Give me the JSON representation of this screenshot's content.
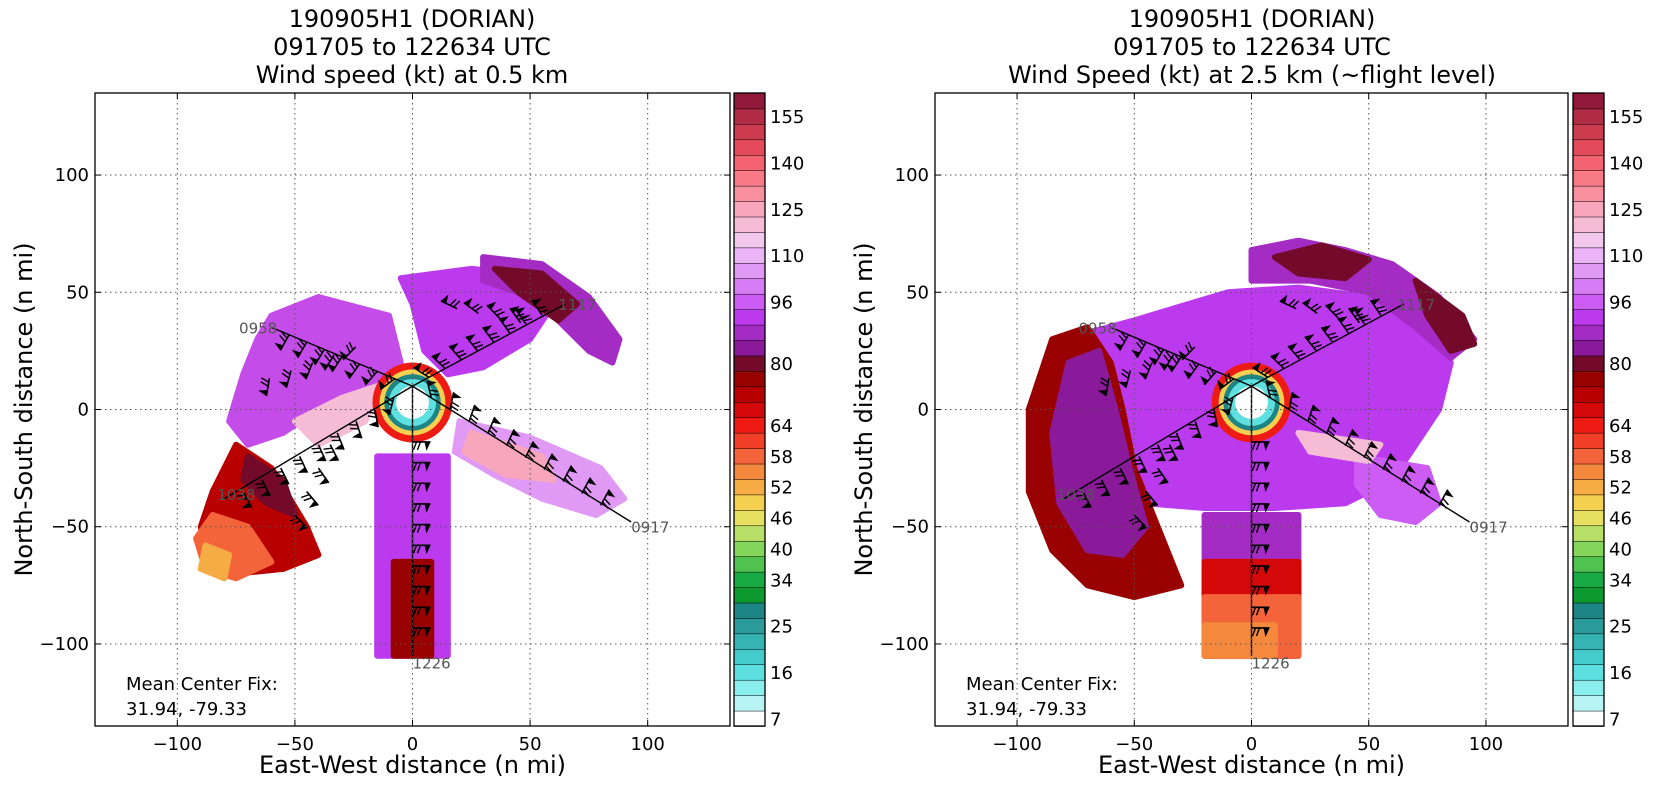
{
  "chart_data": [
    {
      "type": "heatmap",
      "title": [
        "190905H1 (DORIAN)",
        "091705 to 122634 UTC",
        "Wind speed (kt) at 0.5 km"
      ],
      "xlabel": "East-West distance (n mi)",
      "ylabel": "North-South distance (n mi)",
      "xlim": [
        -135,
        135
      ],
      "ylim": [
        -135,
        135
      ],
      "xticks": [
        -100,
        -50,
        0,
        50,
        100
      ],
      "yticks": [
        -100,
        -50,
        0,
        50,
        100
      ],
      "grid": true,
      "annotation": [
        "Mean Center Fix:",
        "31.94, -79.33"
      ],
      "colorbar": {
        "levels": [
          7,
          10,
          13,
          16,
          19,
          22,
          25,
          28,
          31,
          34,
          37,
          40,
          43,
          46,
          49,
          52,
          55,
          58,
          61,
          64,
          68,
          72,
          76,
          80,
          84,
          88,
          92,
          96,
          100,
          105,
          110,
          115,
          120,
          125,
          130,
          135,
          140,
          145,
          150,
          155,
          160
        ],
        "tick_labels": [
          "7",
          "16",
          "25",
          "34",
          "40",
          "46",
          "52",
          "58",
          "64",
          "80",
          "96",
          "110",
          "125",
          "140",
          "155"
        ],
        "colors": [
          "#ffffff",
          "#b8f4f4",
          "#8aeeee",
          "#5ee0e0",
          "#44cccc",
          "#36b4b4",
          "#2a9a9a",
          "#1e8585",
          "#0c9a30",
          "#18aa44",
          "#4fc24f",
          "#84d65a",
          "#b8e068",
          "#e6e060",
          "#f4d050",
          "#f6ac44",
          "#f4893e",
          "#f4643a",
          "#f24028",
          "#ee1a14",
          "#d40808",
          "#b80000",
          "#990000",
          "#730a2a",
          "#8a1a9a",
          "#a42cc4",
          "#bc3aee",
          "#cc5cf4",
          "#d67cf4",
          "#e09af6",
          "#eab4f6",
          "#f4c8ee",
          "#f6bcd6",
          "#f8a6bc",
          "#f990a0",
          "#f87a86",
          "#f46470",
          "#e44a5a",
          "#cc3c4e",
          "#b02c44",
          "#901838"
        ]
      },
      "track_time_labels": [
        "0917",
        "0958",
        "1038",
        "1117",
        "1226"
      ]
    },
    {
      "type": "heatmap",
      "title": [
        "190905H1 (DORIAN)",
        "091705 to 122634 UTC",
        "Wind Speed (kt) at 2.5 km (~flight level)"
      ],
      "xlabel": "East-West distance (n mi)",
      "ylabel": "North-South distance (n mi)",
      "xlim": [
        -135,
        135
      ],
      "ylim": [
        -135,
        135
      ],
      "xticks": [
        -100,
        -50,
        0,
        50,
        100
      ],
      "yticks": [
        -100,
        -50,
        0,
        50,
        100
      ],
      "grid": true,
      "annotation": [
        "Mean Center Fix:",
        "31.94, -79.33"
      ],
      "colorbar": {
        "levels": [
          7,
          10,
          13,
          16,
          19,
          22,
          25,
          28,
          31,
          34,
          37,
          40,
          43,
          46,
          49,
          52,
          55,
          58,
          61,
          64,
          68,
          72,
          76,
          80,
          84,
          88,
          92,
          96,
          100,
          105,
          110,
          115,
          120,
          125,
          130,
          135,
          140,
          145,
          150,
          155,
          160
        ],
        "tick_labels": [
          "7",
          "16",
          "25",
          "34",
          "40",
          "46",
          "52",
          "58",
          "64",
          "80",
          "96",
          "110",
          "125",
          "140",
          "155"
        ],
        "colors": [
          "#ffffff",
          "#b8f4f4",
          "#8aeeee",
          "#5ee0e0",
          "#44cccc",
          "#36b4b4",
          "#2a9a9a",
          "#1e8585",
          "#0c9a30",
          "#18aa44",
          "#4fc24f",
          "#84d65a",
          "#b8e068",
          "#e6e060",
          "#f4d050",
          "#f6ac44",
          "#f4893e",
          "#f4643a",
          "#f24028",
          "#ee1a14",
          "#d40808",
          "#b80000",
          "#990000",
          "#730a2a",
          "#8a1a9a",
          "#a42cc4",
          "#bc3aee",
          "#cc5cf4",
          "#d67cf4",
          "#e09af6",
          "#eab4f6",
          "#f4c8ee",
          "#f6bcd6",
          "#f8a6bc",
          "#f990a0",
          "#f87a86",
          "#f46470",
          "#e44a5a",
          "#cc3c4e",
          "#b02c44",
          "#901838"
        ]
      },
      "track_time_labels": [
        "0917",
        "0958",
        "1038",
        "1117",
        "1226"
      ]
    }
  ]
}
